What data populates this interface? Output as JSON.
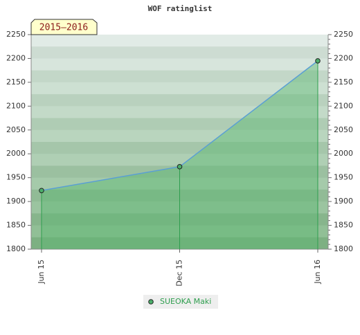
{
  "chart_data": {
    "type": "line",
    "title": "WOF ratinglist",
    "period_label": "2015–2016",
    "categories": [
      "Jun 15",
      "Dec 15",
      "Jun 16"
    ],
    "series": [
      {
        "name": "SUEOKA Maki",
        "color": "#5a9fd4",
        "values": [
          1923,
          1973,
          2195
        ]
      }
    ],
    "fill_color": "#5cb870",
    "ylim": [
      1800,
      2250
    ],
    "yticks": [
      1800,
      1850,
      1900,
      1950,
      2000,
      2050,
      2100,
      2150,
      2200,
      2250
    ],
    "y2lim": [
      1800,
      2250
    ],
    "y2ticks": [
      1800,
      1850,
      1900,
      1950,
      2000,
      2050,
      2100,
      2150,
      2200,
      2250
    ]
  }
}
